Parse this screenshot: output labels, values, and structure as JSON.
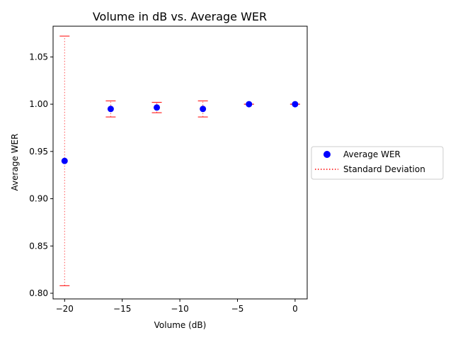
{
  "chart_data": {
    "type": "scatter",
    "title": "Volume in dB vs. Average WER",
    "xlabel": "Volume (dB)",
    "ylabel": "Average WER",
    "xlim": [
      -21,
      1.05
    ],
    "ylim": [
      0.794,
      1.0825
    ],
    "xticks": [
      -20,
      -15,
      -10,
      -5,
      0
    ],
    "xtick_labels": [
      "−20",
      "−15",
      "−10",
      "−5",
      "0"
    ],
    "yticks": [
      0.8,
      0.85,
      0.9,
      0.95,
      1.0,
      1.05
    ],
    "ytick_labels": [
      "0.80",
      "0.85",
      "0.90",
      "0.95",
      "1.00",
      "1.05"
    ],
    "grid": false,
    "legend_position": "outside-right",
    "colors": {
      "points": "#0000ff",
      "errorbars": "#ff0000"
    },
    "series": [
      {
        "name": "Average WER",
        "x": [
          -20,
          -16,
          -12,
          -8,
          -4,
          0
        ],
        "y": [
          0.94,
          0.995,
          0.9965,
          0.995,
          1.0,
          1.0
        ]
      },
      {
        "name": "Standard Deviation",
        "x": [
          -20,
          -16,
          -12,
          -8,
          -4,
          0
        ],
        "std": [
          0.132,
          0.0085,
          0.0055,
          0.0085,
          0.0,
          0.0
        ]
      }
    ]
  }
}
